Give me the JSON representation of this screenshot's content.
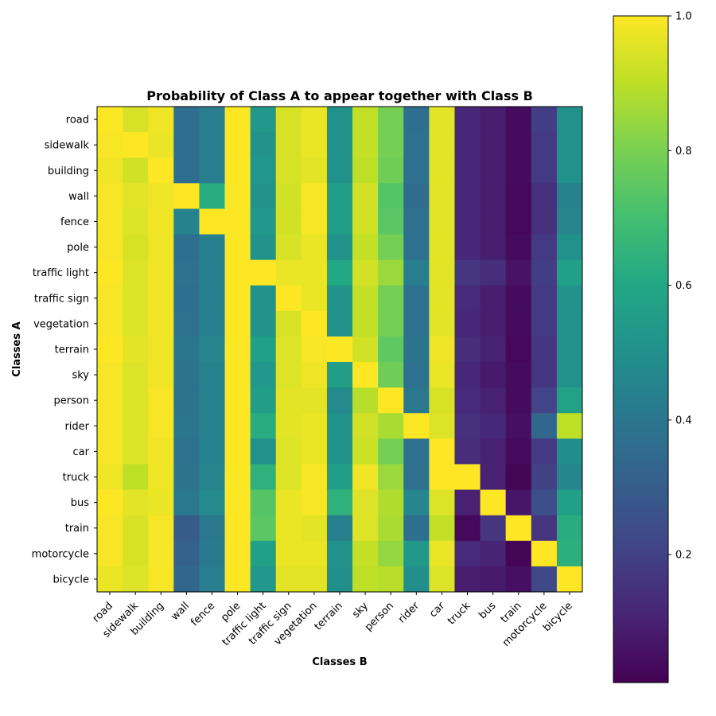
{
  "chart_data": {
    "type": "heatmap",
    "title": "Probability of Class A to appear together with Class B",
    "xlabel": "Classes B",
    "ylabel": "Classes A",
    "x_categories": [
      "road",
      "sidewalk",
      "building",
      "wall",
      "fence",
      "pole",
      "traffic light",
      "traffic sign",
      "vegetation",
      "terrain",
      "sky",
      "person",
      "rider",
      "car",
      "truck",
      "bus",
      "train",
      "motorcycle",
      "bicycle"
    ],
    "y_categories": [
      "road",
      "sidewalk",
      "building",
      "wall",
      "fence",
      "pole",
      "traffic light",
      "traffic sign",
      "vegetation",
      "terrain",
      "sky",
      "person",
      "rider",
      "car",
      "truck",
      "bus",
      "train",
      "motorcycle",
      "bicycle"
    ],
    "colormap": "viridis",
    "vmin": 0.0,
    "vmax": 1.0,
    "colorbar_ticks": [
      "0.2",
      "0.4",
      "0.6",
      "0.8",
      "1.0"
    ],
    "colorbar_tick_values": [
      0.2,
      0.4,
      0.6,
      0.8,
      1.0
    ],
    "grid": false,
    "values": [
      [
        1.0,
        0.94,
        0.98,
        0.36,
        0.42,
        1.0,
        0.53,
        0.94,
        0.97,
        0.5,
        0.91,
        0.79,
        0.36,
        0.96,
        0.11,
        0.08,
        0.03,
        0.18,
        0.5
      ],
      [
        0.99,
        1.0,
        0.97,
        0.36,
        0.42,
        1.0,
        0.51,
        0.94,
        0.97,
        0.5,
        0.91,
        0.79,
        0.37,
        0.96,
        0.11,
        0.08,
        0.03,
        0.17,
        0.5
      ],
      [
        0.98,
        0.93,
        1.0,
        0.36,
        0.42,
        1.0,
        0.52,
        0.94,
        0.96,
        0.5,
        0.9,
        0.78,
        0.37,
        0.96,
        0.11,
        0.08,
        0.03,
        0.17,
        0.5
      ],
      [
        0.99,
        0.96,
        0.98,
        1.0,
        0.62,
        1.0,
        0.51,
        0.93,
        0.99,
        0.55,
        0.93,
        0.73,
        0.35,
        0.96,
        0.11,
        0.08,
        0.02,
        0.14,
        0.44
      ],
      [
        0.99,
        0.95,
        0.98,
        0.44,
        1.0,
        1.0,
        0.53,
        0.93,
        0.99,
        0.55,
        0.93,
        0.74,
        0.37,
        0.96,
        0.11,
        0.08,
        0.02,
        0.14,
        0.45
      ],
      [
        0.99,
        0.94,
        0.98,
        0.36,
        0.43,
        1.0,
        0.51,
        0.94,
        0.97,
        0.5,
        0.91,
        0.79,
        0.37,
        0.96,
        0.11,
        0.08,
        0.03,
        0.17,
        0.5
      ],
      [
        1.0,
        0.95,
        0.98,
        0.37,
        0.43,
        1.0,
        1.0,
        0.97,
        0.97,
        0.6,
        0.93,
        0.85,
        0.42,
        0.96,
        0.16,
        0.13,
        0.05,
        0.18,
        0.56
      ],
      [
        0.99,
        0.95,
        0.98,
        0.36,
        0.43,
        1.0,
        0.51,
        1.0,
        0.97,
        0.51,
        0.91,
        0.79,
        0.37,
        0.96,
        0.12,
        0.08,
        0.03,
        0.17,
        0.51
      ],
      [
        0.99,
        0.95,
        0.98,
        0.37,
        0.43,
        1.0,
        0.51,
        0.94,
        1.0,
        0.51,
        0.91,
        0.79,
        0.37,
        0.96,
        0.11,
        0.08,
        0.03,
        0.17,
        0.5
      ],
      [
        1.0,
        0.96,
        0.98,
        0.39,
        0.45,
        1.0,
        0.56,
        0.95,
        0.99,
        1.0,
        0.93,
        0.75,
        0.38,
        0.98,
        0.13,
        0.09,
        0.02,
        0.16,
        0.5
      ],
      [
        0.99,
        0.95,
        0.98,
        0.38,
        0.44,
        1.0,
        0.53,
        0.95,
        0.98,
        0.55,
        1.0,
        0.78,
        0.37,
        0.97,
        0.11,
        0.07,
        0.03,
        0.16,
        0.5
      ],
      [
        0.99,
        0.95,
        0.99,
        0.38,
        0.44,
        1.0,
        0.55,
        0.96,
        0.96,
        0.47,
        0.89,
        1.0,
        0.4,
        0.94,
        0.12,
        0.09,
        0.03,
        0.2,
        0.57
      ],
      [
        0.99,
        0.95,
        0.99,
        0.39,
        0.44,
        1.0,
        0.62,
        0.96,
        0.97,
        0.51,
        0.93,
        0.87,
        1.0,
        0.95,
        0.14,
        0.11,
        0.04,
        0.33,
        0.9
      ],
      [
        0.99,
        0.95,
        0.98,
        0.37,
        0.44,
        1.0,
        0.5,
        0.95,
        0.97,
        0.51,
        0.92,
        0.79,
        0.37,
        1.0,
        0.13,
        0.09,
        0.03,
        0.17,
        0.48
      ],
      [
        0.98,
        0.9,
        0.98,
        0.38,
        0.45,
        1.0,
        0.64,
        0.95,
        0.99,
        0.55,
        0.98,
        0.85,
        0.37,
        1.0,
        1.0,
        0.09,
        0.01,
        0.19,
        0.46
      ],
      [
        1.0,
        0.96,
        0.97,
        0.4,
        0.47,
        1.0,
        0.73,
        0.97,
        0.99,
        0.64,
        0.95,
        0.88,
        0.45,
        0.95,
        0.09,
        1.0,
        0.06,
        0.24,
        0.56
      ],
      [
        0.99,
        0.94,
        0.99,
        0.29,
        0.4,
        1.0,
        0.74,
        0.97,
        0.96,
        0.43,
        0.95,
        0.87,
        0.36,
        0.91,
        0.02,
        0.16,
        1.0,
        0.15,
        0.62
      ],
      [
        0.99,
        0.94,
        0.99,
        0.31,
        0.41,
        1.0,
        0.56,
        0.97,
        0.97,
        0.5,
        0.91,
        0.84,
        0.53,
        0.97,
        0.12,
        0.1,
        0.01,
        1.0,
        0.63
      ],
      [
        0.97,
        0.95,
        0.99,
        0.33,
        0.42,
        1.0,
        0.53,
        0.96,
        0.96,
        0.49,
        0.9,
        0.89,
        0.49,
        0.95,
        0.08,
        0.07,
        0.04,
        0.22,
        1.0
      ]
    ]
  }
}
